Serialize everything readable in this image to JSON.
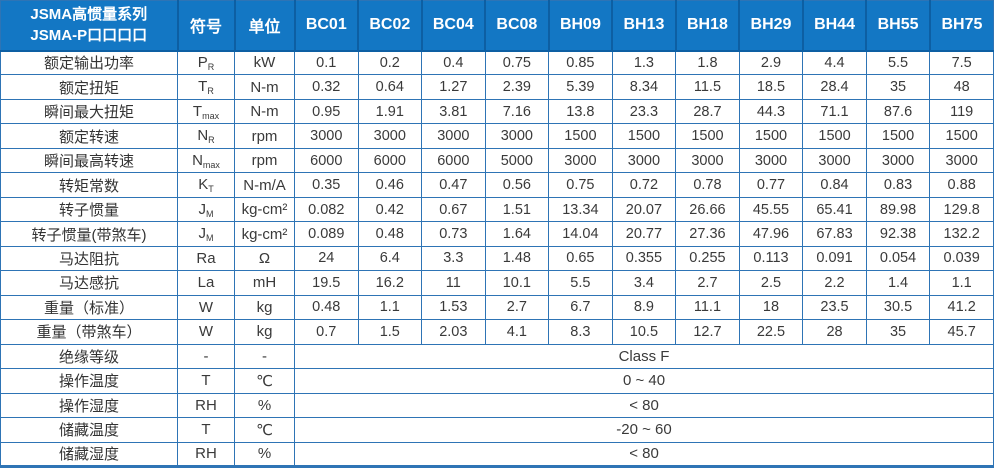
{
  "table": {
    "title_line1": "JSMA高惯量系列",
    "title_line2": "JSMA-P口口口口",
    "symbol_header": "符号",
    "unit_header": "单位",
    "models": [
      "BC01",
      "BC02",
      "BC04",
      "BC08",
      "BH09",
      "BH13",
      "BH18",
      "BH29",
      "BH44",
      "BH55",
      "BH75"
    ],
    "rows": [
      {
        "label": "额定输出功率",
        "sym": "P",
        "sym_sub": "R",
        "unit": "kW",
        "values": [
          "0.1",
          "0.2",
          "0.4",
          "0.75",
          "0.85",
          "1.3",
          "1.8",
          "2.9",
          "4.4",
          "5.5",
          "7.5"
        ]
      },
      {
        "label": "额定扭矩",
        "sym": "T",
        "sym_sub": "R",
        "unit": "N-m",
        "values": [
          "0.32",
          "0.64",
          "1.27",
          "2.39",
          "5.39",
          "8.34",
          "11.5",
          "18.5",
          "28.4",
          "35",
          "48"
        ]
      },
      {
        "label": "瞬间最大扭矩",
        "sym": "T",
        "sym_sub": "max",
        "unit": "N-m",
        "values": [
          "0.95",
          "1.91",
          "3.81",
          "7.16",
          "13.8",
          "23.3",
          "28.7",
          "44.3",
          "71.1",
          "87.6",
          "119"
        ]
      },
      {
        "label": "额定转速",
        "sym": "N",
        "sym_sub": "R",
        "unit": "rpm",
        "values": [
          "3000",
          "3000",
          "3000",
          "3000",
          "1500",
          "1500",
          "1500",
          "1500",
          "1500",
          "1500",
          "1500"
        ]
      },
      {
        "label": "瞬间最高转速",
        "sym": "N",
        "sym_sub": "max",
        "unit": "rpm",
        "values": [
          "6000",
          "6000",
          "6000",
          "5000",
          "3000",
          "3000",
          "3000",
          "3000",
          "3000",
          "3000",
          "3000"
        ]
      },
      {
        "label": "转矩常数",
        "sym": "K",
        "sym_sub": "T",
        "unit": "N-m/A",
        "values": [
          "0.35",
          "0.46",
          "0.47",
          "0.56",
          "0.75",
          "0.72",
          "0.78",
          "0.77",
          "0.84",
          "0.83",
          "0.88"
        ]
      },
      {
        "label": "转子惯量",
        "sym": "J",
        "sym_sub": "M",
        "unit": "kg-cm²",
        "values": [
          "0.082",
          "0.42",
          "0.67",
          "1.51",
          "13.34",
          "20.07",
          "26.66",
          "45.55",
          "65.41",
          "89.98",
          "129.8"
        ]
      },
      {
        "label": "转子惯量(带煞车)",
        "sym": "J",
        "sym_sub": "M",
        "unit": "kg-cm²",
        "values": [
          "0.089",
          "0.48",
          "0.73",
          "1.64",
          "14.04",
          "20.77",
          "27.36",
          "47.96",
          "67.83",
          "92.38",
          "132.2"
        ]
      },
      {
        "label": "马达阻抗",
        "sym": "Ra",
        "sym_sub": "",
        "unit": "Ω",
        "values": [
          "24",
          "6.4",
          "3.3",
          "1.48",
          "0.65",
          "0.355",
          "0.255",
          "0.113",
          "0.091",
          "0.054",
          "0.039"
        ]
      },
      {
        "label": "马达感抗",
        "sym": "La",
        "sym_sub": "",
        "unit": "mH",
        "values": [
          "19.5",
          "16.2",
          "11",
          "10.1",
          "5.5",
          "3.4",
          "2.7",
          "2.5",
          "2.2",
          "1.4",
          "1.1"
        ]
      },
      {
        "label": "重量（标准）",
        "sym": "W",
        "sym_sub": "",
        "unit": "kg",
        "values": [
          "0.48",
          "1.1",
          "1.53",
          "2.7",
          "6.7",
          "8.9",
          "11.1",
          "18",
          "23.5",
          "30.5",
          "41.2"
        ]
      },
      {
        "label": "重量（带煞车）",
        "sym": "W",
        "sym_sub": "",
        "unit": "kg",
        "values": [
          "0.7",
          "1.5",
          "2.03",
          "4.1",
          "8.3",
          "10.5",
          "12.7",
          "22.5",
          "28",
          "35",
          "45.7"
        ]
      }
    ],
    "merged_rows": [
      {
        "label": "绝缘等级",
        "sym": "-",
        "unit": "-",
        "value": "Class F"
      },
      {
        "label": "操作温度",
        "sym": "T",
        "unit": "℃",
        "value": "0 ~ 40"
      },
      {
        "label": "操作湿度",
        "sym": "RH",
        "unit": "%",
        "value": "< 80"
      },
      {
        "label": "储藏温度",
        "sym": "T",
        "unit": "℃",
        "value": "-20 ~ 60"
      },
      {
        "label": "储藏湿度",
        "sym": "RH",
        "unit": "%",
        "value": "< 80"
      }
    ],
    "colors": {
      "header_bg": "#1377c4",
      "header_divider": "#0d5fa3",
      "grid": "#2e74b5",
      "text": "#3a3a3a",
      "header_text": "#ffffff"
    }
  }
}
